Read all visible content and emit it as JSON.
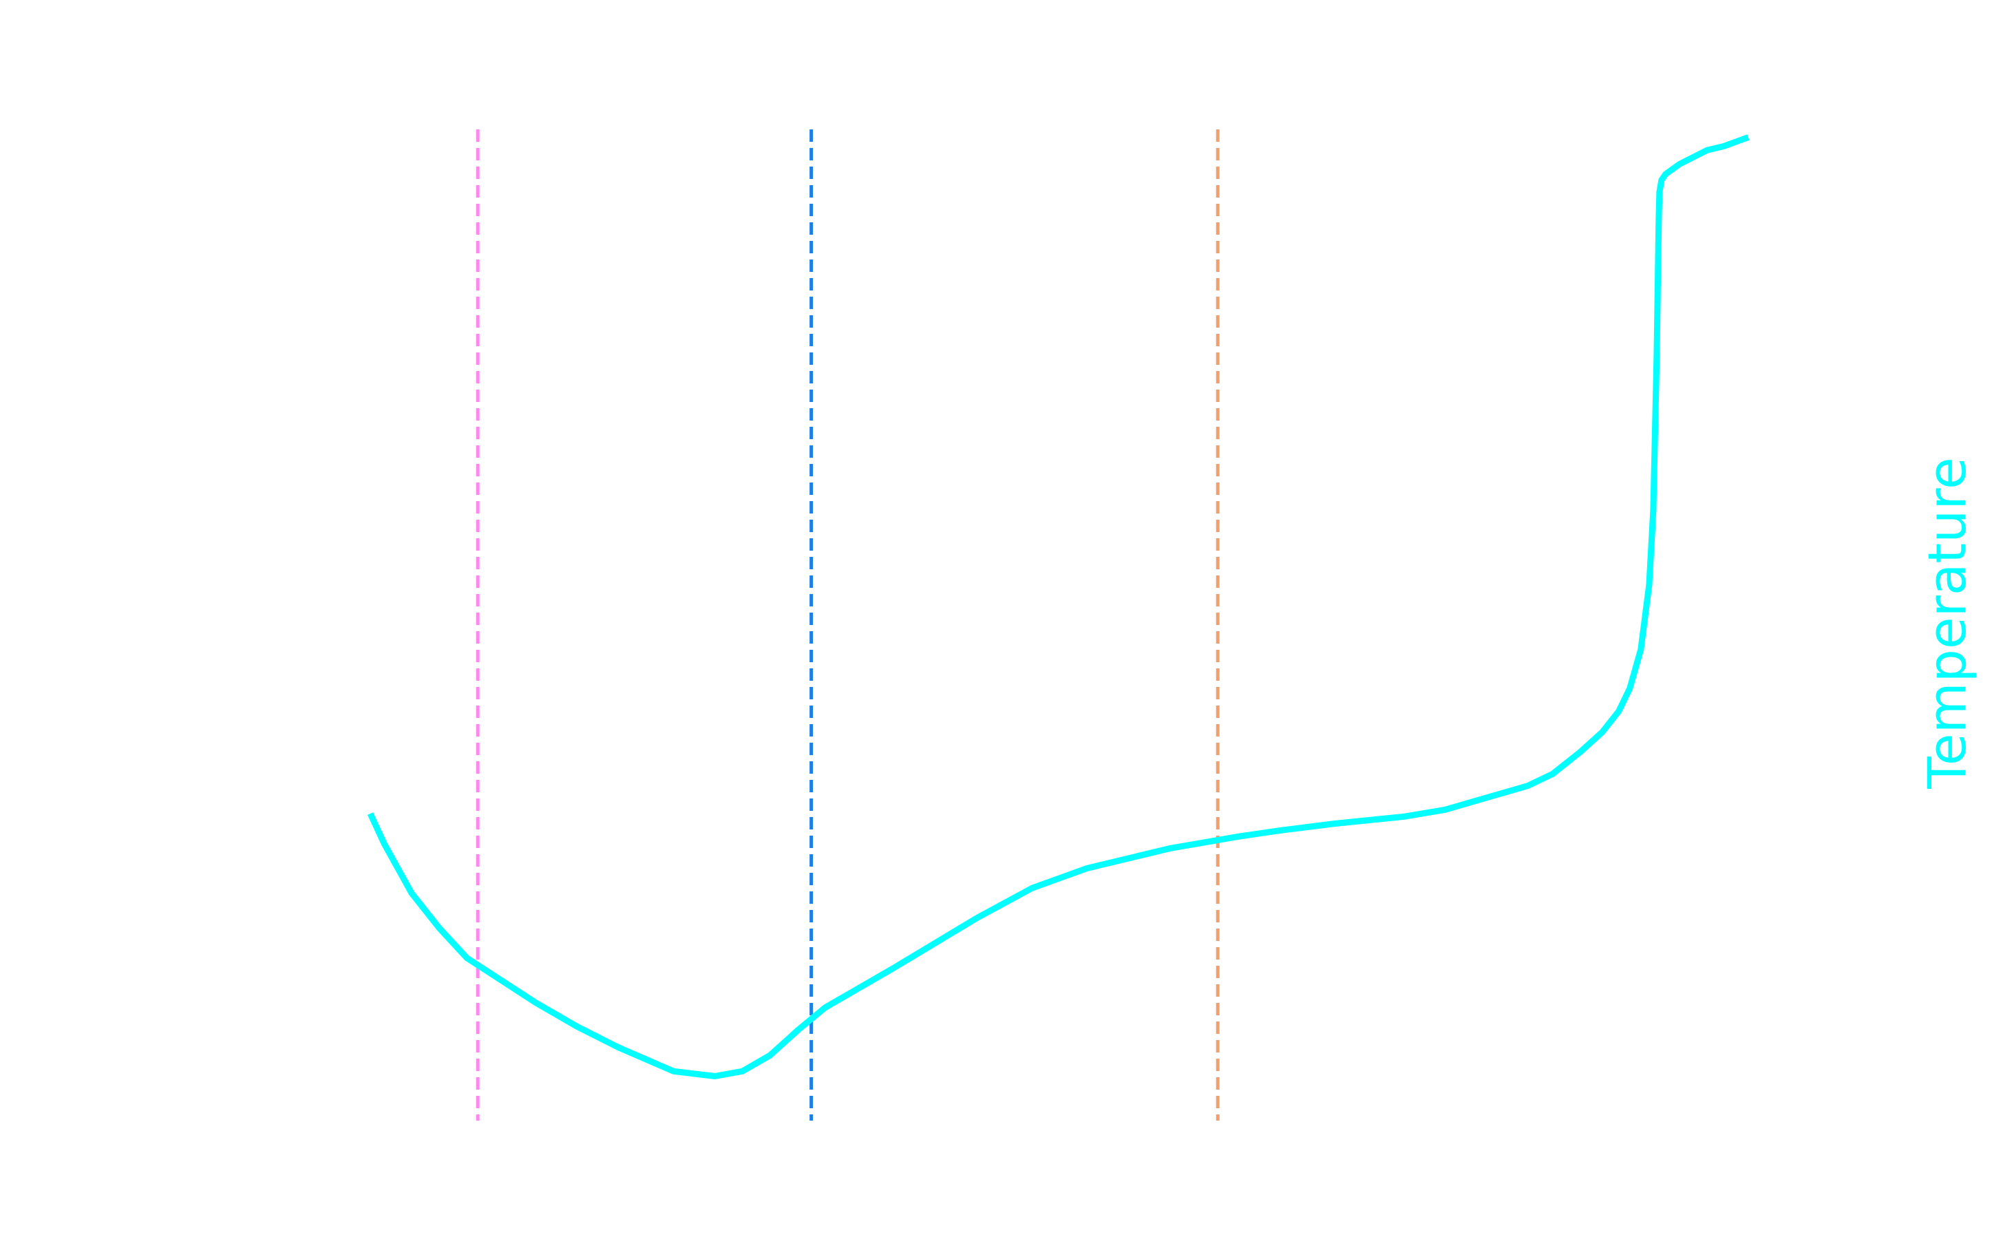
{
  "chart_data": {
    "type": "line",
    "title": "",
    "xlabel": "",
    "ylabel": "Temperature",
    "xlim": [
      0,
      100
    ],
    "ylim": [
      0,
      100
    ],
    "grid": false,
    "legend": "none",
    "series": [
      {
        "color": "#00ffff",
        "x": [
          0,
          1,
          3,
          5,
          7,
          10,
          12,
          15,
          18,
          22,
          25,
          27,
          29,
          31,
          33,
          38,
          44,
          48,
          52,
          58,
          63,
          66,
          70,
          75,
          78,
          80,
          84,
          85.8,
          87.8,
          89.4,
          90.6,
          91.4,
          92.2,
          92.8,
          93.1,
          93.35,
          93.5,
          93.55,
          93.7,
          94,
          95,
          96,
          97,
          98.2,
          100
        ],
        "y": [
          31,
          28,
          23,
          19.5,
          16.5,
          13.8,
          12,
          9.6,
          7.5,
          5.1,
          4.6,
          5.1,
          6.7,
          9.2,
          11.5,
          15.5,
          20.5,
          23.5,
          25.5,
          27.5,
          28.7,
          29.3,
          30,
          30.7,
          31.4,
          32.2,
          33.8,
          35,
          37.2,
          39.2,
          41.3,
          43.6,
          47.5,
          54,
          61.5,
          77,
          91,
          93.5,
          94.7,
          95.3,
          96.3,
          97,
          97.7,
          98.1,
          99
        ]
      }
    ],
    "vlines": [
      {
        "x": 7.8,
        "color": "#ff88ee",
        "style": "dashed"
      },
      {
        "x": 32,
        "color": "#1e7fe6",
        "style": "dashed"
      },
      {
        "x": 61.5,
        "color": "#f0a070",
        "style": "dashed"
      }
    ]
  }
}
